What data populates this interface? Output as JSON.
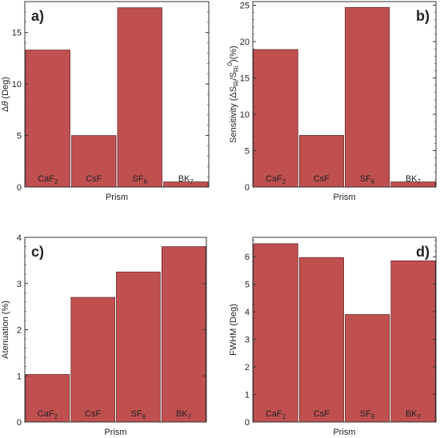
{
  "chart_data": [
    {
      "type": "bar",
      "panel_label": "a)",
      "categories": [
        {
          "base": "CaF",
          "sub": "2"
        },
        {
          "base": "CsF",
          "sub": ""
        },
        {
          "base": "SF",
          "sub": "6"
        },
        {
          "base": "BK",
          "sub": "7"
        }
      ],
      "values": [
        13.3,
        5.0,
        17.4,
        0.5
      ],
      "ylim": [
        0,
        18
      ],
      "yticks": [
        0,
        5,
        10,
        15
      ],
      "xlabel": "Prism",
      "ylabel": {
        "parts": [
          {
            "t": "Δ"
          },
          {
            "t": "θ",
            "style": "italic"
          },
          {
            "t": " (Deg)"
          }
        ]
      }
    },
    {
      "type": "bar",
      "panel_label": "b)",
      "categories": [
        {
          "base": "CaF",
          "sub": "2"
        },
        {
          "base": "CsF",
          "sub": ""
        },
        {
          "base": "SF",
          "sub": "6"
        },
        {
          "base": "BK",
          "sub": "7"
        }
      ],
      "values": [
        18.9,
        7.1,
        24.7,
        0.7
      ],
      "ylim": [
        0,
        25.5
      ],
      "yticks": [
        0,
        5,
        10,
        15,
        20,
        25
      ],
      "xlabel": "Prism",
      "ylabel": {
        "parts": [
          {
            "t": "Sensitivity ("
          },
          {
            "t": "ΔS"
          },
          {
            "t": "Ri",
            "sub": true
          },
          {
            "t": "/S"
          },
          {
            "t": "Ri",
            "sub": true
          },
          {
            "t": "0",
            "sup": true
          },
          {
            "t": ")(%)"
          }
        ]
      }
    },
    {
      "type": "bar",
      "panel_label": "c)",
      "categories": [
        {
          "base": "CaF",
          "sub": "2"
        },
        {
          "base": "CsF",
          "sub": ""
        },
        {
          "base": "SF",
          "sub": "6"
        },
        {
          "base": "BK",
          "sub": "7"
        }
      ],
      "values": [
        1.03,
        2.7,
        3.25,
        3.8
      ],
      "ylim": [
        0,
        4
      ],
      "yticks": [
        0,
        1,
        2,
        3,
        4
      ],
      "xlabel": "Prism",
      "ylabel": {
        "parts": [
          {
            "t": "Atenuation (%)"
          }
        ]
      }
    },
    {
      "type": "bar",
      "panel_label": "d)",
      "categories": [
        {
          "base": "CaF",
          "sub": "2"
        },
        {
          "base": "CsF",
          "sub": ""
        },
        {
          "base": "SF",
          "sub": "6"
        },
        {
          "base": "BK",
          "sub": "7"
        }
      ],
      "values": [
        6.47,
        5.97,
        3.9,
        5.85
      ],
      "ylim": [
        0,
        6.7
      ],
      "yticks": [
        0,
        1,
        2,
        3,
        4,
        5,
        6
      ],
      "xlabel": "Prism",
      "ylabel": {
        "parts": [
          {
            "t": "FWHM (Deg)"
          }
        ]
      }
    }
  ],
  "colors": {
    "bar_fill": "#c05050",
    "bar_stroke": "#6b2a2a",
    "axis": "#333333"
  }
}
